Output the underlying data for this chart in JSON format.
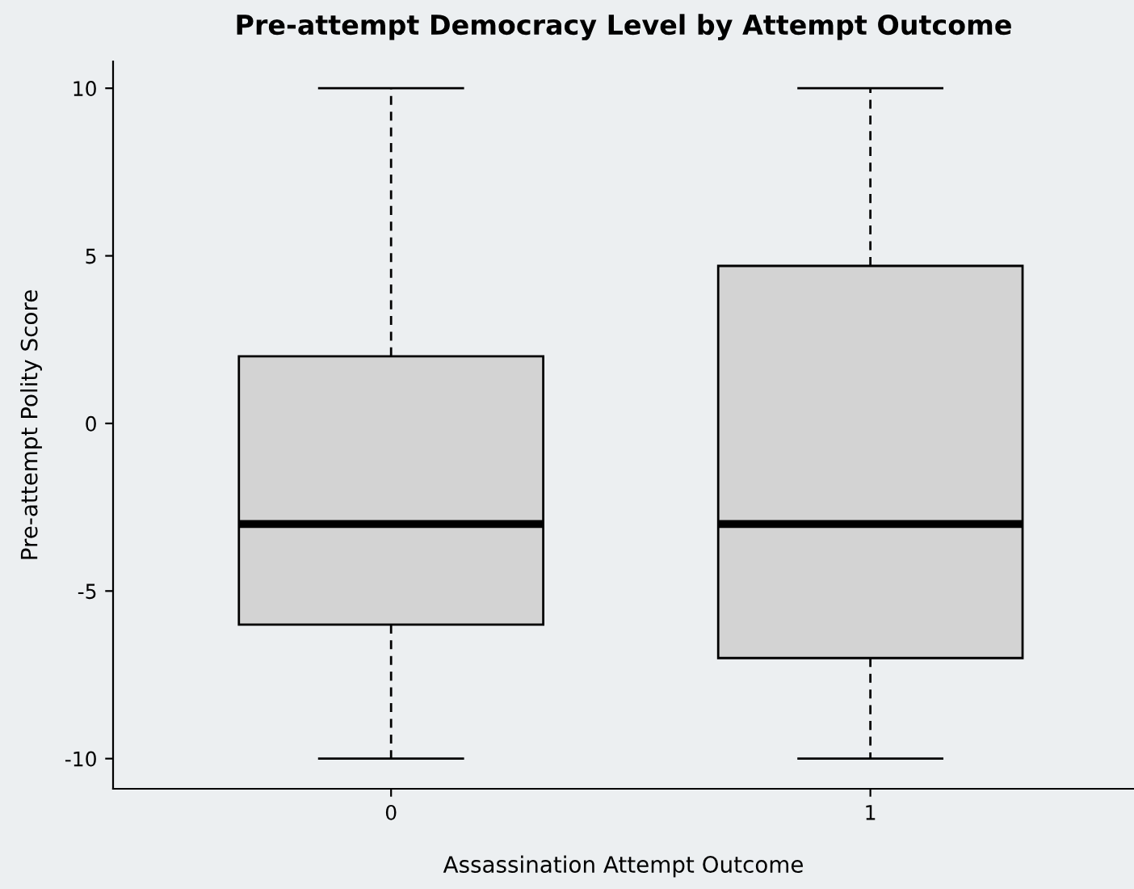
{
  "chart_data": {
    "type": "box",
    "title": "Pre-attempt Democracy Level by Attempt Outcome",
    "xlabel": "Assassination Attempt Outcome",
    "ylabel": "Pre-attempt Polity Score",
    "categories": [
      "0",
      "1"
    ],
    "boxes": [
      {
        "low": -10,
        "q1": -6,
        "median": -3,
        "q3": 2,
        "high": 10
      },
      {
        "low": -10,
        "q1": -7,
        "median": -3,
        "q3": 4.7,
        "high": 10
      }
    ],
    "color": "#d3d3d3",
    "ylim": [
      -10.9,
      10.8
    ],
    "yticks": [
      -10,
      -5,
      0,
      5,
      10
    ],
    "grid": false
  }
}
